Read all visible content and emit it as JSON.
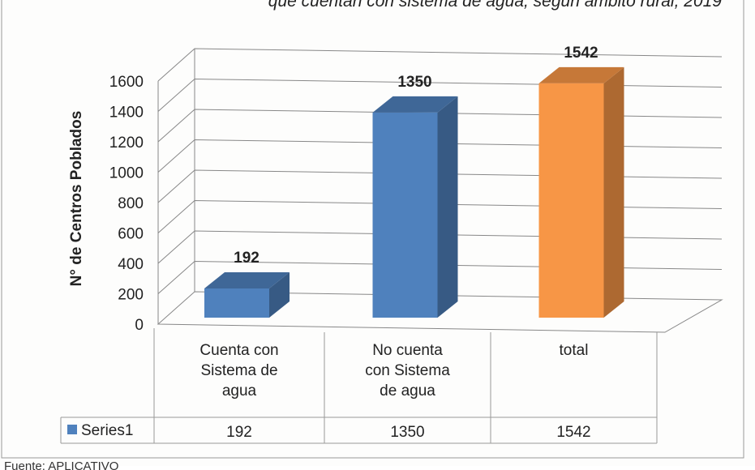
{
  "chart_data": {
    "type": "bar3d",
    "title": "que cuentan con sistema de agua, según ámbito rural, 2019",
    "y_label": "N° de Centros Poblados",
    "categories": [
      "Cuenta con Sistema de agua",
      "No cuenta con Sistema de agua",
      "total"
    ],
    "series": [
      {
        "name": "Series1",
        "color": "#4f81bd",
        "colors": [
          "#4f81bd",
          "#4f81bd",
          "#f79646"
        ],
        "values": [
          192,
          1350,
          1542
        ]
      }
    ],
    "ylim": [
      0,
      1600
    ],
    "yticks": [
      0,
      200,
      400,
      600,
      800,
      1000,
      1200,
      1400,
      1600
    ],
    "grid": true,
    "source": "Fuente: APLICATIVO"
  }
}
